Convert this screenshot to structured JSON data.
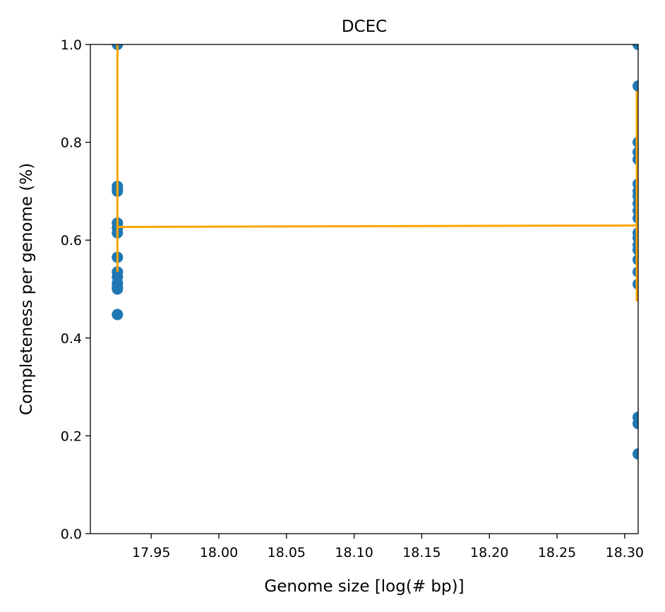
{
  "chart_data": {
    "type": "scatter",
    "title": "DCEC",
    "xlabel": "Genome size [log(# bp)]",
    "ylabel": "Completeness per genome (%)",
    "xlim": [
      17.905,
      18.31
    ],
    "ylim": [
      0.0,
      1.0
    ],
    "x_ticks": [
      17.95,
      18.0,
      18.05,
      18.1,
      18.15,
      18.2,
      18.25,
      18.3
    ],
    "x_tick_labels": [
      "17.95",
      "18.00",
      "18.05",
      "18.10",
      "18.15",
      "18.20",
      "18.25",
      "18.30"
    ],
    "y_ticks": [
      0.0,
      0.2,
      0.4,
      0.6,
      0.8,
      1.0
    ],
    "y_tick_labels": [
      "0.0",
      "0.2",
      "0.4",
      "0.6",
      "0.8",
      "1.0"
    ],
    "grid": false,
    "series": [
      {
        "kind": "scatter",
        "color": "#1f77b4",
        "points": [
          [
            17.925,
            1.0
          ],
          [
            17.925,
            0.71
          ],
          [
            17.925,
            0.705
          ],
          [
            17.925,
            0.7
          ],
          [
            17.925,
            0.635
          ],
          [
            17.925,
            0.625
          ],
          [
            17.925,
            0.615
          ],
          [
            17.925,
            0.565
          ],
          [
            17.925,
            0.535
          ],
          [
            17.925,
            0.525
          ],
          [
            17.925,
            0.512
          ],
          [
            17.925,
            0.505
          ],
          [
            17.925,
            0.5
          ],
          [
            17.925,
            0.448
          ],
          [
            18.31,
            1.0
          ],
          [
            18.31,
            0.915
          ],
          [
            18.31,
            0.8
          ],
          [
            18.31,
            0.78
          ],
          [
            18.31,
            0.765
          ],
          [
            18.31,
            0.715
          ],
          [
            18.31,
            0.7
          ],
          [
            18.31,
            0.69
          ],
          [
            18.31,
            0.675
          ],
          [
            18.31,
            0.66
          ],
          [
            18.31,
            0.645
          ],
          [
            18.31,
            0.615
          ],
          [
            18.31,
            0.605
          ],
          [
            18.31,
            0.59
          ],
          [
            18.31,
            0.58
          ],
          [
            18.31,
            0.56
          ],
          [
            18.31,
            0.535
          ],
          [
            18.31,
            0.51
          ],
          [
            18.31,
            0.238
          ],
          [
            18.31,
            0.225
          ],
          [
            18.31,
            0.163
          ]
        ]
      },
      {
        "kind": "line",
        "color": "#ffa500",
        "segments": [
          [
            [
              17.925,
              1.0
            ],
            [
              17.925,
              0.535
            ]
          ],
          [
            [
              17.925,
              0.627
            ],
            [
              18.31,
              0.63
            ]
          ],
          [
            [
              18.309,
              0.905
            ],
            [
              18.309,
              0.475
            ]
          ]
        ]
      }
    ]
  }
}
